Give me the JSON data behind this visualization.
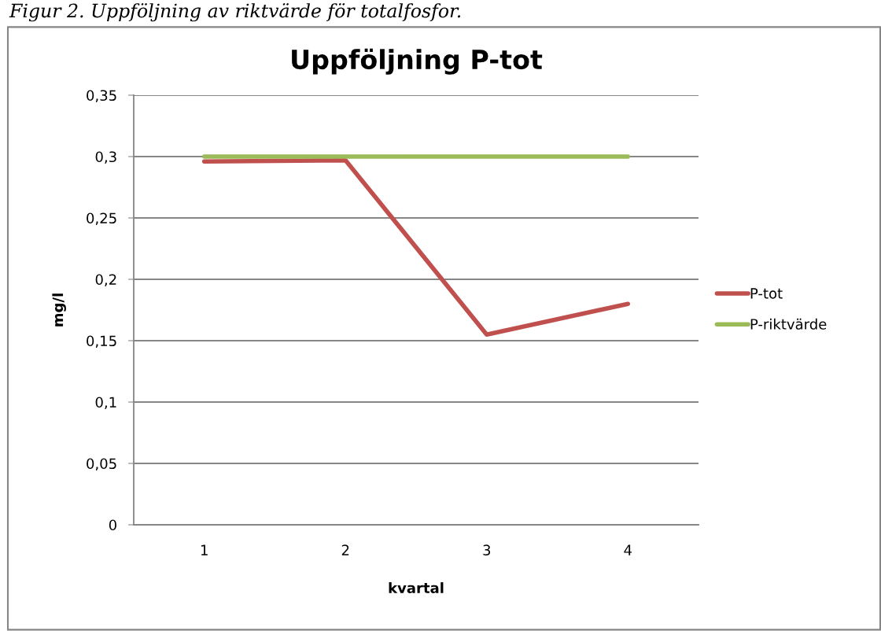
{
  "chart_data": {
    "type": "line",
    "title": "Uppföljning P-tot",
    "xlabel": "kvartal",
    "ylabel": "mg/l",
    "annotations": [
      "Figur 2. Uppföljning av riktvärde för totalfosfor."
    ],
    "categories": [
      "1",
      "2",
      "3",
      "4"
    ],
    "series": [
      {
        "name": "P-tot",
        "color": "#c0504d",
        "values": [
          0.296,
          0.297,
          0.155,
          0.18
        ]
      },
      {
        "name": "P-riktvärde",
        "color": "#9bbb59",
        "values": [
          0.3,
          0.3,
          0.3,
          0.3
        ]
      }
    ],
    "ylim": [
      0,
      0.35
    ],
    "yticks": [
      {
        "value": 0,
        "label": "0"
      },
      {
        "value": 0.05,
        "label": "0,05"
      },
      {
        "value": 0.1,
        "label": "0,1"
      },
      {
        "value": 0.15,
        "label": "0,15"
      },
      {
        "value": 0.2,
        "label": "0,2"
      },
      {
        "value": 0.25,
        "label": "0,25"
      },
      {
        "value": 0.3,
        "label": "0,3"
      },
      {
        "value": 0.35,
        "label": "0,35"
      }
    ],
    "grid": "y",
    "legend": "right",
    "marker": "none",
    "line_style": "solid"
  }
}
